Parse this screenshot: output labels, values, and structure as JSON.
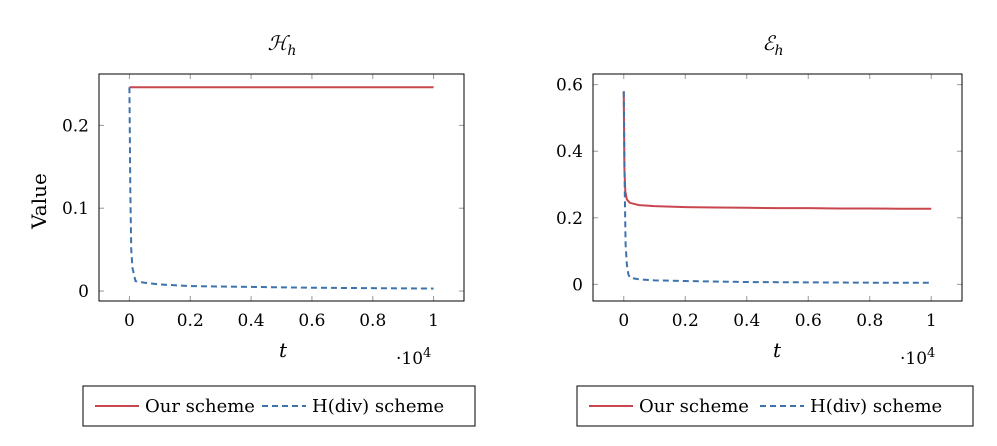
{
  "colors": {
    "our_scheme": "#c8474f",
    "hdiv_scheme": "#3d73ad",
    "frame": "#000000",
    "grid_ticks": "#9a9a9a"
  },
  "chart_data": [
    {
      "type": "line",
      "title": "ℋh",
      "title_main": "ℋ",
      "title_sub": "h",
      "xlabel": "t",
      "ylabel": "Value",
      "x_multiplier": "·10",
      "x_multiplier_exp": "4",
      "xlim": [
        -0.1,
        1.1
      ],
      "ylim": [
        -0.012,
        0.262
      ],
      "xticks": [
        0,
        0.2,
        0.4,
        0.6,
        0.8,
        1
      ],
      "xtick_labels": [
        "0",
        "0.2",
        "0.4",
        "0.6",
        "0.8",
        "1"
      ],
      "yticks": [
        0,
        0.1,
        0.2
      ],
      "ytick_labels": [
        "0",
        "0.1",
        "0.2"
      ],
      "legend": "below",
      "grid": false,
      "series": [
        {
          "name": "Our scheme",
          "style": "solid",
          "x": [
            0,
            0.02,
            0.2,
            0.4,
            0.6,
            0.8,
            1.0
          ],
          "y": [
            0.246,
            0.246,
            0.246,
            0.246,
            0.246,
            0.246,
            0.246
          ]
        },
        {
          "name": "H(div) scheme",
          "style": "dashed",
          "x": [
            0,
            0.003,
            0.006,
            0.01,
            0.015,
            0.02,
            0.05,
            0.1,
            0.2,
            0.4,
            0.6,
            0.8,
            1.0
          ],
          "y": [
            0.246,
            0.12,
            0.05,
            0.028,
            0.02,
            0.012,
            0.01,
            0.008,
            0.006,
            0.005,
            0.004,
            0.0035,
            0.003
          ]
        }
      ],
      "legend_entries": [
        "Our scheme",
        "H(div) scheme"
      ]
    },
    {
      "type": "line",
      "title": "ℰh",
      "title_main": "ℰ",
      "title_sub": "h",
      "xlabel": "t",
      "ylabel": "",
      "x_multiplier": "·10",
      "x_multiplier_exp": "4",
      "xlim": [
        -0.1,
        1.1
      ],
      "ylim": [
        -0.05,
        0.632
      ],
      "xticks": [
        0,
        0.2,
        0.4,
        0.6,
        0.8,
        1
      ],
      "xtick_labels": [
        "0",
        "0.2",
        "0.4",
        "0.6",
        "0.8",
        "1"
      ],
      "yticks": [
        0,
        0.2,
        0.4,
        0.6
      ],
      "ytick_labels": [
        "0",
        "0.2",
        "0.4",
        "0.6"
      ],
      "legend": "below",
      "grid": false,
      "series": [
        {
          "name": "Our scheme",
          "style": "solid",
          "x": [
            0,
            0.002,
            0.005,
            0.01,
            0.02,
            0.05,
            0.1,
            0.2,
            0.3,
            0.4,
            0.5,
            0.6,
            0.7,
            0.8,
            0.9,
            1.0
          ],
          "y": [
            0.58,
            0.35,
            0.28,
            0.255,
            0.245,
            0.238,
            0.235,
            0.232,
            0.231,
            0.23,
            0.229,
            0.229,
            0.228,
            0.228,
            0.227,
            0.227
          ]
        },
        {
          "name": "H(div) scheme",
          "style": "dashed",
          "x": [
            0,
            0.003,
            0.006,
            0.01,
            0.015,
            0.02,
            0.05,
            0.1,
            0.2,
            0.4,
            0.6,
            0.8,
            1.0
          ],
          "y": [
            0.58,
            0.3,
            0.12,
            0.06,
            0.03,
            0.02,
            0.015,
            0.012,
            0.01,
            0.007,
            0.006,
            0.005,
            0.005
          ]
        }
      ],
      "legend_entries": [
        "Our scheme",
        "H(div) scheme"
      ]
    }
  ]
}
